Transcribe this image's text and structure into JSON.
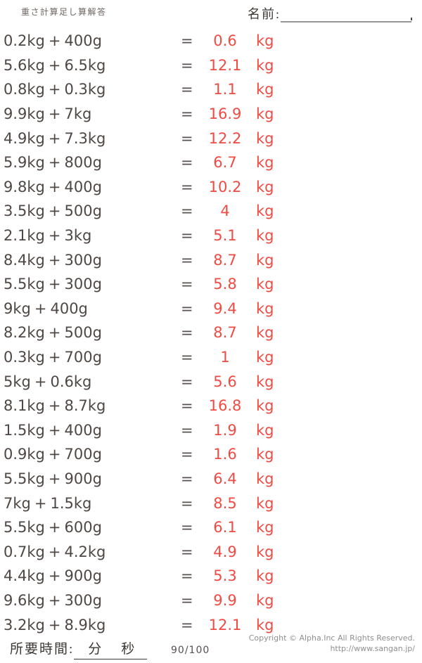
{
  "header": {
    "title": "重さ計算足し算解答",
    "name_label": "名前:"
  },
  "operator": "+",
  "equals": "=",
  "problems": [
    {
      "a": "0.2kg",
      "b": "400g",
      "answer": "0.6",
      "unit": "kg"
    },
    {
      "a": "5.6kg",
      "b": "6.5kg",
      "answer": "12.1",
      "unit": "kg"
    },
    {
      "a": "0.8kg",
      "b": "0.3kg",
      "answer": "1.1",
      "unit": "kg"
    },
    {
      "a": "9.9kg",
      "b": "7kg",
      "answer": "16.9",
      "unit": "kg"
    },
    {
      "a": "4.9kg",
      "b": "7.3kg",
      "answer": "12.2",
      "unit": "kg"
    },
    {
      "a": "5.9kg",
      "b": "800g",
      "answer": "6.7",
      "unit": "kg"
    },
    {
      "a": "9.8kg",
      "b": "400g",
      "answer": "10.2",
      "unit": "kg"
    },
    {
      "a": "3.5kg",
      "b": "500g",
      "answer": "4",
      "unit": "kg"
    },
    {
      "a": "2.1kg",
      "b": "3kg",
      "answer": "5.1",
      "unit": "kg"
    },
    {
      "a": "8.4kg",
      "b": "300g",
      "answer": "8.7",
      "unit": "kg"
    },
    {
      "a": "5.5kg",
      "b": "300g",
      "answer": "5.8",
      "unit": "kg"
    },
    {
      "a": "9kg",
      "b": "400g",
      "answer": "9.4",
      "unit": "kg"
    },
    {
      "a": "8.2kg",
      "b": "500g",
      "answer": "8.7",
      "unit": "kg"
    },
    {
      "a": "0.3kg",
      "b": "700g",
      "answer": "1",
      "unit": "kg"
    },
    {
      "a": "5kg",
      "b": "0.6kg",
      "answer": "5.6",
      "unit": "kg"
    },
    {
      "a": "8.1kg",
      "b": "8.7kg",
      "answer": "16.8",
      "unit": "kg"
    },
    {
      "a": "1.5kg",
      "b": "400g",
      "answer": "1.9",
      "unit": "kg"
    },
    {
      "a": "0.9kg",
      "b": "700g",
      "answer": "1.6",
      "unit": "kg"
    },
    {
      "a": "5.5kg",
      "b": "900g",
      "answer": "6.4",
      "unit": "kg"
    },
    {
      "a": "7kg",
      "b": "1.5kg",
      "answer": "8.5",
      "unit": "kg"
    },
    {
      "a": "5.5kg",
      "b": "600g",
      "answer": "6.1",
      "unit": "kg"
    },
    {
      "a": "0.7kg",
      "b": "4.2kg",
      "answer": "4.9",
      "unit": "kg"
    },
    {
      "a": "4.4kg",
      "b": "900g",
      "answer": "5.3",
      "unit": "kg"
    },
    {
      "a": "9.6kg",
      "b": "300g",
      "answer": "9.9",
      "unit": "kg"
    },
    {
      "a": "3.2kg",
      "b": "8.9kg",
      "answer": "12.1",
      "unit": "kg"
    }
  ],
  "footer": {
    "time_label": "所要時間:",
    "minutes_label": "分",
    "seconds_label": "秒",
    "score": "90/100",
    "copyright": "Copyright © Alpha.Inc All Rights Reserved.",
    "url": "http://www.sangan.jp/"
  },
  "colors": {
    "answer_red": "#f14a43",
    "problem_text": "#4e4743",
    "label_dark": "#3d3734",
    "muted_gray": "#8f8f8f"
  }
}
